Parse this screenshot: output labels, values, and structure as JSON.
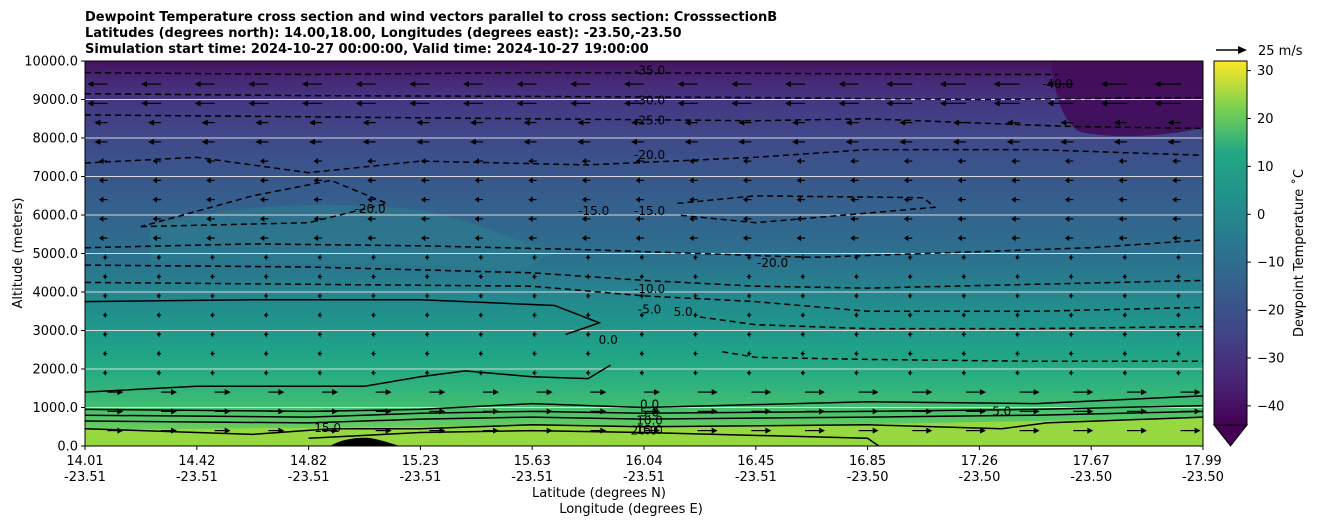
{
  "chart_data": {
    "type": "heatmap",
    "title_lines": [
      "Dewpoint Temperature cross section and wind vectors parallel to cross section: CrosssectionB",
      "Latitudes (degrees north): 14.00,18.00, Longitudes (degrees east): -23.50,-23.50",
      "Simulation start time: 2024-10-27 00:00:00, Valid time: 2024-10-27 19:00:00"
    ],
    "ylabel": "Altitude (meters)",
    "xlabel": "Latitude (degrees N)",
    "xlabel2": "Longitude (degrees E)",
    "ylim": [
      0,
      10000
    ],
    "yticks": [
      "10000.0",
      "9000.0",
      "8000.0",
      "7000.0",
      "6000.0",
      "5000.0",
      "4000.0",
      "3000.0",
      "2000.0",
      "1000.0",
      "0.0"
    ],
    "ytick_values": [
      10000,
      9000,
      8000,
      7000,
      6000,
      5000,
      4000,
      3000,
      2000,
      1000,
      0
    ],
    "grid": "horizontal",
    "x_ticks": [
      {
        "lat": "14.01",
        "lon": "-23.51"
      },
      {
        "lat": "14.42",
        "lon": "-23.51"
      },
      {
        "lat": "14.82",
        "lon": "-23.51"
      },
      {
        "lat": "15.23",
        "lon": "-23.51"
      },
      {
        "lat": "15.63",
        "lon": "-23.51"
      },
      {
        "lat": "16.04",
        "lon": "-23.51"
      },
      {
        "lat": "16.45",
        "lon": "-23.51"
      },
      {
        "lat": "16.85",
        "lon": "-23.50"
      },
      {
        "lat": "17.26",
        "lon": "-23.50"
      },
      {
        "lat": "17.67",
        "lon": "-23.50"
      },
      {
        "lat": "17.99",
        "lon": "-23.50"
      }
    ],
    "colorbar": {
      "label": "Dewpoint Temperature $^\\circ$C",
      "label_display": "Dewpoint Temperature ˚C",
      "colormap": "viridis",
      "range": [
        -44,
        32
      ],
      "ticks": [
        "30",
        "20",
        "10",
        "0",
        "−10",
        "−20",
        "−30",
        "−40"
      ],
      "tick_values": [
        30,
        20,
        10,
        0,
        -10,
        -20,
        -30,
        -40
      ],
      "extend": "min"
    },
    "quiver_key": "25 m/s",
    "contour_labels": [
      {
        "text": "-35.0",
        "x": 0.505,
        "alt": 9750
      },
      {
        "text": "-30.0",
        "x": 0.505,
        "alt": 8980
      },
      {
        "text": "-25.0",
        "x": 0.505,
        "alt": 8460
      },
      {
        "text": "-20.0",
        "x": 0.505,
        "alt": 7560
      },
      {
        "text": "-20.0",
        "x": 0.255,
        "alt": 6150
      },
      {
        "text": "-15.0",
        "x": 0.455,
        "alt": 6100
      },
      {
        "text": "-15.0",
        "x": 0.505,
        "alt": 6100
      },
      {
        "text": "-20.0",
        "x": 0.615,
        "alt": 4750
      },
      {
        "text": "-40.0",
        "x": 0.87,
        "alt": 9400
      },
      {
        "text": "-10.0",
        "x": 0.505,
        "alt": 4080
      },
      {
        "text": "-5.0",
        "x": 0.505,
        "alt": 3550
      },
      {
        "text": "5.0",
        "x": 0.535,
        "alt": 3480
      },
      {
        "text": "0.0",
        "x": 0.468,
        "alt": 2750
      },
      {
        "text": "0.0",
        "x": 0.505,
        "alt": 1080
      },
      {
        "text": "5.0",
        "x": 0.505,
        "alt": 870
      },
      {
        "text": "10.0",
        "x": 0.505,
        "alt": 660
      },
      {
        "text": "15.0",
        "x": 0.505,
        "alt": 420
      },
      {
        "text": "20.0",
        "x": 0.5,
        "alt": 400
      },
      {
        "text": "15.0",
        "x": 0.217,
        "alt": 470
      },
      {
        "text": "5.0",
        "x": 0.82,
        "alt": 900
      }
    ]
  }
}
